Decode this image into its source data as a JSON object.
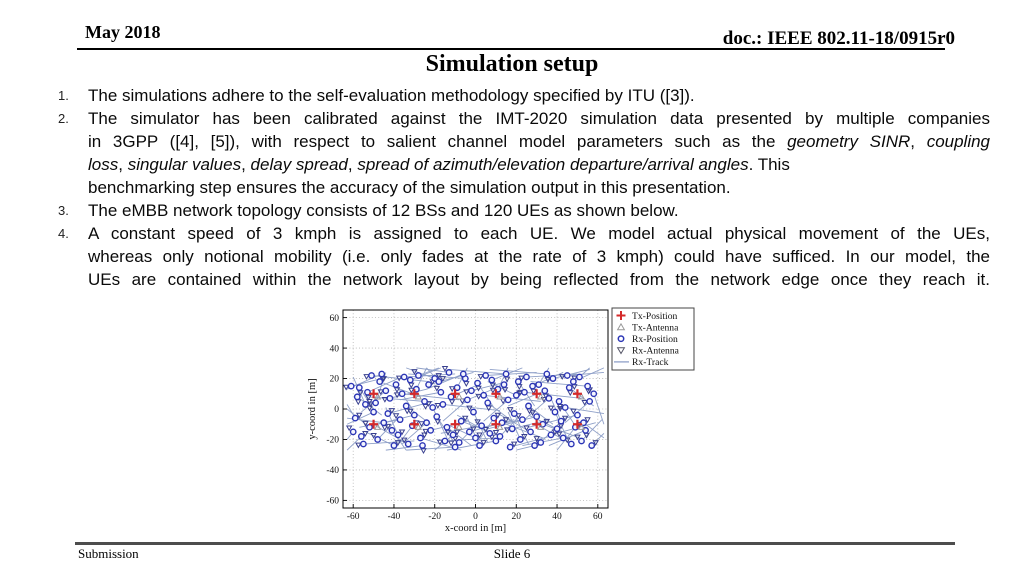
{
  "header": {
    "date": "May 2018",
    "doc": "doc.: IEEE 802.11-18/0915r0"
  },
  "title": "Simulation setup",
  "list": {
    "items": [
      {
        "num": "1.",
        "lines": [
          {
            "j": false,
            "seg": [
              {
                "t": "The simulations adhere to the self-evaluation methodology specified by ITU ([3])."
              }
            ]
          }
        ]
      },
      {
        "num": "2.",
        "lines": [
          {
            "j": true,
            "seg": [
              {
                "t": "The simulator has been calibrated against the IMT-2020 simulation data presented by multiple companies"
              }
            ]
          },
          {
            "j": true,
            "seg": [
              {
                "t": "in 3GPP ([4], [5]), with respect to salient channel model parameters such as the "
              },
              {
                "t": "geometry SINR",
                "i": true
              },
              {
                "t": ", "
              },
              {
                "t": "coupling",
                "i": true
              }
            ]
          },
          {
            "j": false,
            "seg": [
              {
                "t": "loss",
                "i": true
              },
              {
                "t": ", "
              },
              {
                "t": "singular values",
                "i": true
              },
              {
                "t": ", "
              },
              {
                "t": "delay spread",
                "i": true
              },
              {
                "t": ", "
              },
              {
                "t": "spread of azimuth/elevation departure/arrival angles",
                "i": true
              },
              {
                "t": ". This"
              }
            ]
          },
          {
            "j": false,
            "seg": [
              {
                "t": "benchmarking step ensures the accuracy of the simulation output in this presentation."
              }
            ]
          }
        ]
      },
      {
        "num": "3.",
        "lines": [
          {
            "j": false,
            "seg": [
              {
                "t": "The eMBB network topology consists of 12 BSs and 120 UEs as shown below."
              }
            ]
          }
        ]
      },
      {
        "num": "4.",
        "lines": [
          {
            "j": true,
            "seg": [
              {
                "t": "A constant speed of 3 kmph is assigned to each UE. We model actual physical movement of the UEs,"
              }
            ]
          },
          {
            "j": true,
            "seg": [
              {
                "t": "whereas only notional mobility (i.e. only fades at the rate of 3 kmph) could have sufficed. In our model, the"
              }
            ]
          },
          {
            "j": true,
            "seg": [
              {
                "t": "UEs are contained within the network layout by being reflected from the network edge once they reach it."
              }
            ]
          }
        ]
      }
    ]
  },
  "chart_data": {
    "type": "scatter",
    "title": "",
    "xlabel": "x-coord in [m]",
    "ylabel": "y-coord in [m]",
    "xlim": [
      -65,
      65
    ],
    "ylim": [
      -65,
      65
    ],
    "xticks": [
      -60,
      -40,
      -20,
      0,
      20,
      40,
      60
    ],
    "yticks": [
      -60,
      -40,
      -20,
      0,
      20,
      40,
      60
    ],
    "grid": "dotted",
    "colors": {
      "tx": "#d42a2a",
      "rx": "#2b35b5",
      "rx_antenna": "#39408f",
      "tx_antenna": "#999999",
      "track": "#8fa0c8",
      "grid": "#b5b5b5",
      "axis": "#000000"
    },
    "legend": {
      "position": "outside-top-right",
      "entries": [
        {
          "label": "Tx-Position",
          "marker": "plus",
          "color": "#d42a2a"
        },
        {
          "label": "Tx-Antenna",
          "marker": "triangle-up",
          "color": "#999999"
        },
        {
          "label": "Rx-Position",
          "marker": "circle",
          "color": "#2b35b5"
        },
        {
          "label": "Rx-Antenna",
          "marker": "triangle-down",
          "color": "#555566"
        },
        {
          "label": "Rx-Track",
          "marker": "line",
          "color": "#8fa0c8"
        }
      ]
    },
    "tx_positions": [
      [
        -50,
        10
      ],
      [
        -30,
        10
      ],
      [
        -10,
        10
      ],
      [
        10,
        10
      ],
      [
        30,
        10
      ],
      [
        50,
        10
      ],
      [
        -50,
        -10
      ],
      [
        -30,
        -10
      ],
      [
        -10,
        -10
      ],
      [
        10,
        -10
      ],
      [
        30,
        -10
      ],
      [
        50,
        -10
      ]
    ],
    "rx_positions": [
      [
        -61,
        15
      ],
      [
        -59,
        -6
      ],
      [
        -57,
        14
      ],
      [
        -60,
        -15
      ],
      [
        -55,
        -23
      ],
      [
        -54,
        3
      ],
      [
        -58,
        8
      ],
      [
        -52,
        -12
      ],
      [
        -51,
        22
      ],
      [
        -56,
        -18
      ],
      [
        -53,
        11
      ],
      [
        -50,
        -2
      ],
      [
        -49,
        4
      ],
      [
        -47,
        18
      ],
      [
        -45,
        -9
      ],
      [
        -48,
        -20
      ],
      [
        -44,
        12
      ],
      [
        -43,
        -3
      ],
      [
        -46,
        23
      ],
      [
        -41,
        -14
      ],
      [
        -42,
        7
      ],
      [
        -40,
        -24
      ],
      [
        -39,
        16
      ],
      [
        -37,
        -7
      ],
      [
        -35,
        21
      ],
      [
        -38,
        -17
      ],
      [
        -34,
        2
      ],
      [
        -33,
        -23
      ],
      [
        -36,
        10
      ],
      [
        -31,
        -11
      ],
      [
        -32,
        19
      ],
      [
        -30,
        -4
      ],
      [
        -29,
        13
      ],
      [
        -27,
        -19
      ],
      [
        -25,
        5
      ],
      [
        -28,
        22
      ],
      [
        -24,
        -9
      ],
      [
        -23,
        16
      ],
      [
        -26,
        -24
      ],
      [
        -21,
        1
      ],
      [
        -22,
        -14
      ],
      [
        -20,
        20
      ],
      [
        -19,
        -5
      ],
      [
        -17,
        11
      ],
      [
        -15,
        -21
      ],
      [
        -18,
        18
      ],
      [
        -14,
        -12
      ],
      [
        -13,
        24
      ],
      [
        -16,
        3
      ],
      [
        -11,
        -17
      ],
      [
        -12,
        8
      ],
      [
        -10,
        -25
      ],
      [
        -9,
        14
      ],
      [
        -7,
        -8
      ],
      [
        -5,
        20
      ],
      [
        -8,
        -22
      ],
      [
        -4,
        6
      ],
      [
        -3,
        -15
      ],
      [
        -6,
        23
      ],
      [
        -1,
        -2
      ],
      [
        -2,
        12
      ],
      [
        0,
        -19
      ],
      [
        1,
        17
      ],
      [
        3,
        -11
      ],
      [
        5,
        22
      ],
      [
        2,
        -24
      ],
      [
        6,
        4
      ],
      [
        7,
        -16
      ],
      [
        4,
        9
      ],
      [
        9,
        -6
      ],
      [
        8,
        19
      ],
      [
        10,
        -21
      ],
      [
        11,
        13
      ],
      [
        13,
        -9
      ],
      [
        15,
        23
      ],
      [
        12,
        -18
      ],
      [
        16,
        6
      ],
      [
        17,
        -25
      ],
      [
        14,
        16
      ],
      [
        19,
        -3
      ],
      [
        18,
        -13
      ],
      [
        20,
        9
      ],
      [
        21,
        18
      ],
      [
        23,
        -7
      ],
      [
        25,
        21
      ],
      [
        22,
        -20
      ],
      [
        26,
        2
      ],
      [
        27,
        -15
      ],
      [
        24,
        11
      ],
      [
        29,
        -24
      ],
      [
        28,
        15
      ],
      [
        30,
        -5
      ],
      [
        31,
        16
      ],
      [
        33,
        -10
      ],
      [
        35,
        23
      ],
      [
        32,
        -22
      ],
      [
        36,
        7
      ],
      [
        37,
        -17
      ],
      [
        34,
        12
      ],
      [
        39,
        -2
      ],
      [
        38,
        20
      ],
      [
        40,
        -13
      ],
      [
        41,
        5
      ],
      [
        43,
        -19
      ],
      [
        45,
        22
      ],
      [
        42,
        -8
      ],
      [
        46,
        14
      ],
      [
        47,
        -23
      ],
      [
        44,
        1
      ],
      [
        49,
        -12
      ],
      [
        48,
        18
      ],
      [
        50,
        -4
      ],
      [
        51,
        21
      ],
      [
        53,
        -9
      ],
      [
        55,
        15
      ],
      [
        52,
        -21
      ],
      [
        56,
        5
      ],
      [
        57,
        -24
      ],
      [
        54,
        -14
      ],
      [
        58,
        10
      ]
    ],
    "track_deltas": [
      [
        18,
        6
      ],
      [
        -14,
        9
      ],
      [
        8,
        -16
      ],
      [
        -20,
        -5
      ],
      [
        25,
        2
      ],
      [
        -6,
        18
      ],
      [
        12,
        -12
      ],
      [
        -16,
        12
      ],
      [
        28,
        -4
      ],
      [
        -9,
        -18
      ],
      [
        15,
        9
      ],
      [
        -24,
        -8
      ],
      [
        5,
        20
      ],
      [
        20,
        -10
      ],
      [
        -28,
        3
      ],
      [
        10,
        14
      ],
      [
        -12,
        -14
      ],
      [
        22,
        8
      ],
      [
        -18,
        -10
      ],
      [
        7,
        -20
      ]
    ]
  },
  "footer": {
    "submission": "Submission",
    "slide": "Slide 6"
  }
}
